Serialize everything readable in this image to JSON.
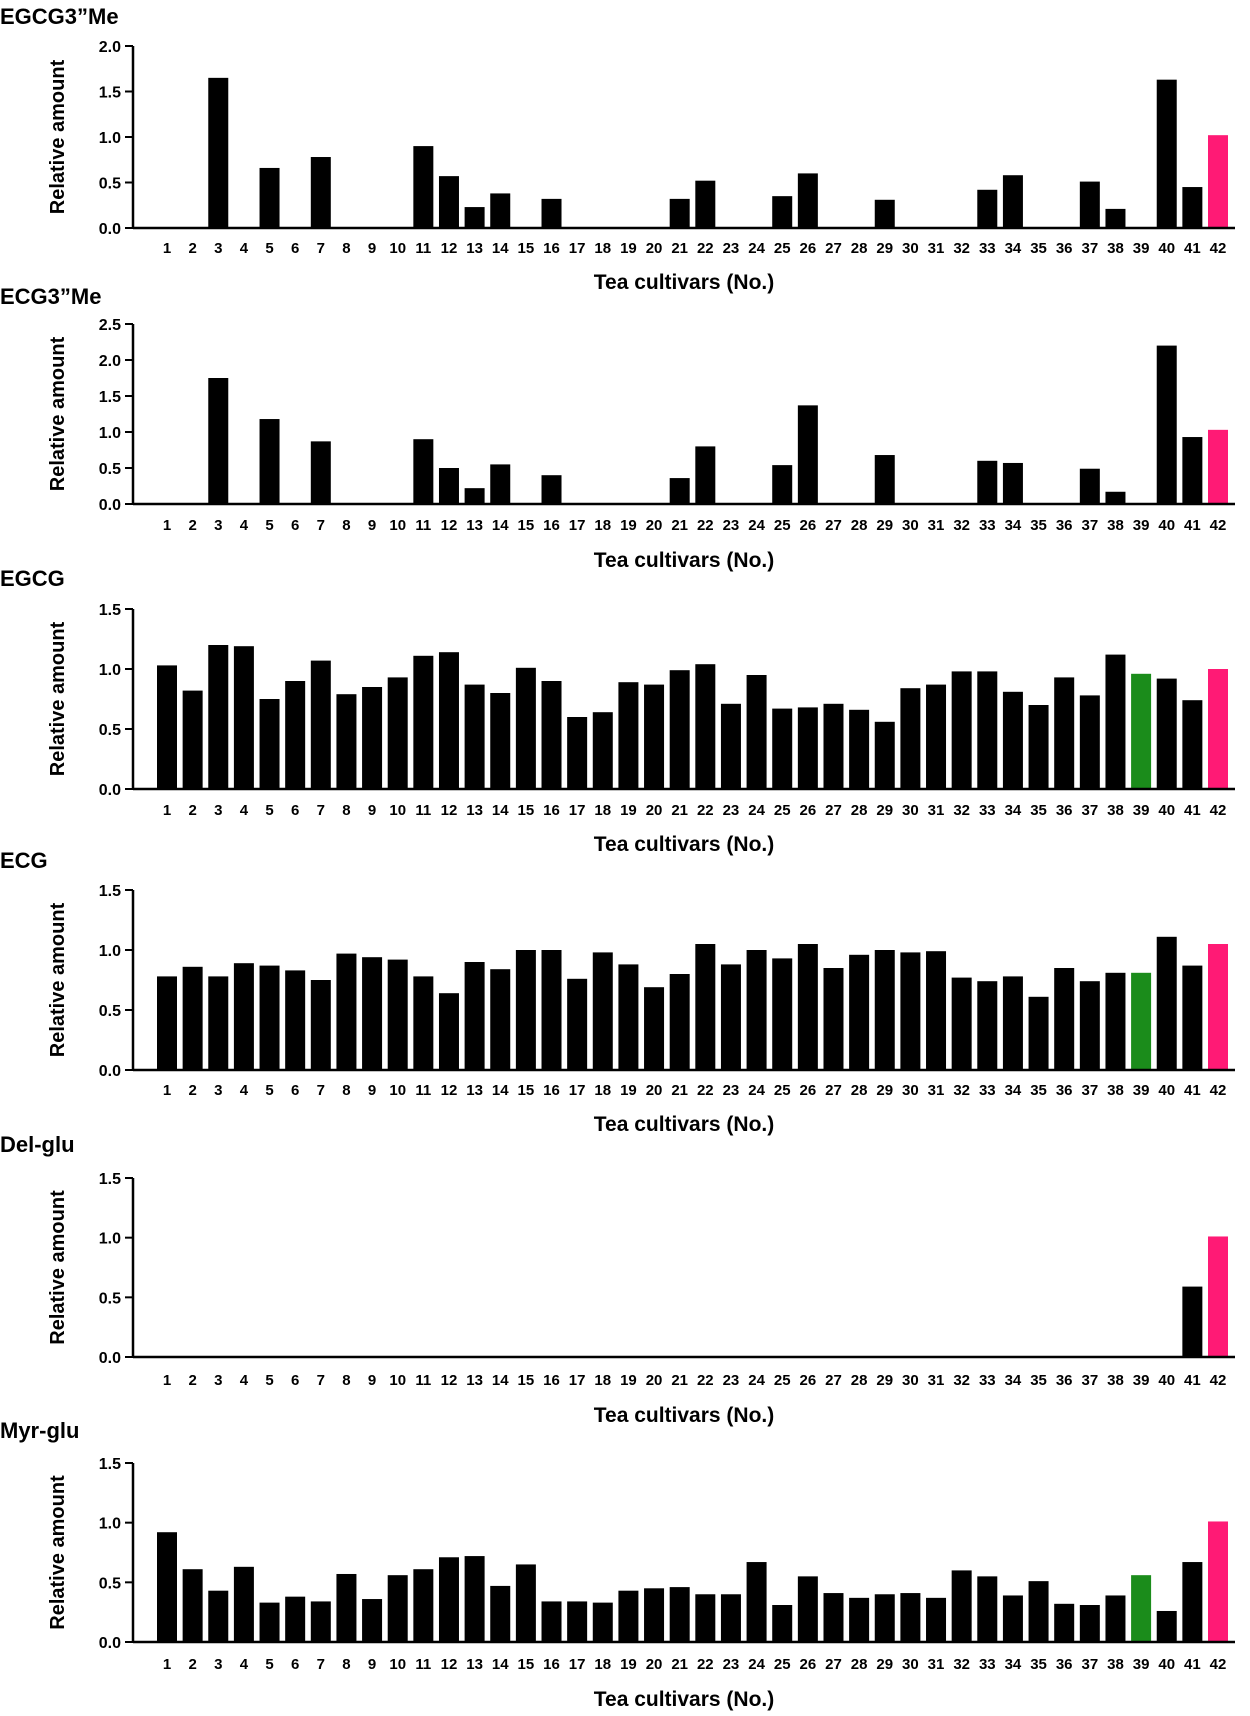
{
  "colors": {
    "bar": "#000000",
    "highlight_pink": "#ff1a75",
    "highlight_green": "#1b8c1b"
  },
  "chart_data": [
    {
      "type": "bar",
      "title": "EGCG3”Me",
      "xlabel": "Tea cultivars (No.)",
      "ylabel": "Relative amount",
      "ylim": [
        0,
        2.0
      ],
      "yticks": [
        "0.0",
        "0.5",
        "1.0",
        "1.5",
        "2.0"
      ],
      "categories": [
        "1",
        "2",
        "3",
        "4",
        "5",
        "6",
        "7",
        "8",
        "9",
        "10",
        "11",
        "12",
        "13",
        "14",
        "15",
        "16",
        "17",
        "18",
        "19",
        "20",
        "21",
        "22",
        "23",
        "24",
        "25",
        "26",
        "27",
        "28",
        "29",
        "30",
        "31",
        "32",
        "33",
        "34",
        "35",
        "36",
        "37",
        "38",
        "39",
        "40",
        "41",
        "42"
      ],
      "values": [
        0,
        0,
        1.65,
        0,
        0.66,
        0,
        0.78,
        0,
        0,
        0,
        0.9,
        0.57,
        0.23,
        0.38,
        0,
        0.32,
        0,
        0,
        0,
        0,
        0.32,
        0.52,
        0,
        0,
        0.35,
        0.6,
        0,
        0,
        0.31,
        0,
        0,
        0,
        0.42,
        0.58,
        0,
        0,
        0.51,
        0.21,
        0,
        1.63,
        0.45,
        1.02
      ],
      "highlight": {
        "42": "pink"
      }
    },
    {
      "type": "bar",
      "title": "ECG3”Me",
      "xlabel": "Tea cultivars (No.)",
      "ylabel": "Relative amount",
      "ylim": [
        0,
        2.5
      ],
      "yticks": [
        "0.0",
        "0.5",
        "1.0",
        "1.5",
        "2.0",
        "2.5"
      ],
      "categories": [
        "1",
        "2",
        "3",
        "4",
        "5",
        "6",
        "7",
        "8",
        "9",
        "10",
        "11",
        "12",
        "13",
        "14",
        "15",
        "16",
        "17",
        "18",
        "19",
        "20",
        "21",
        "22",
        "23",
        "24",
        "25",
        "26",
        "27",
        "28",
        "29",
        "30",
        "31",
        "32",
        "33",
        "34",
        "35",
        "36",
        "37",
        "38",
        "39",
        "40",
        "41",
        "42"
      ],
      "values": [
        0,
        0,
        1.75,
        0,
        1.18,
        0,
        0.87,
        0,
        0,
        0,
        0.9,
        0.5,
        0.22,
        0.55,
        0,
        0.4,
        0,
        0,
        0,
        0,
        0.36,
        0.8,
        0,
        0,
        0.54,
        1.37,
        0,
        0,
        0.68,
        0,
        0,
        0,
        0.6,
        0.57,
        0,
        0,
        0.49,
        0.17,
        0,
        2.2,
        0.93,
        1.03
      ],
      "highlight": {
        "42": "pink"
      }
    },
    {
      "type": "bar",
      "title": "EGCG",
      "xlabel": "Tea cultivars (No.)",
      "ylabel": "Relative amount",
      "ylim": [
        0,
        1.5
      ],
      "yticks": [
        "0.0",
        "0.5",
        "1.0",
        "1.5"
      ],
      "categories": [
        "1",
        "2",
        "3",
        "4",
        "5",
        "6",
        "7",
        "8",
        "9",
        "10",
        "11",
        "12",
        "13",
        "14",
        "15",
        "16",
        "17",
        "18",
        "19",
        "20",
        "21",
        "22",
        "23",
        "24",
        "25",
        "26",
        "27",
        "28",
        "29",
        "30",
        "31",
        "32",
        "33",
        "34",
        "35",
        "36",
        "37",
        "38",
        "39",
        "40",
        "41",
        "42"
      ],
      "values": [
        1.03,
        0.82,
        1.2,
        1.19,
        0.75,
        0.9,
        1.07,
        0.79,
        0.85,
        0.93,
        1.11,
        1.14,
        0.87,
        0.8,
        1.01,
        0.9,
        0.6,
        0.64,
        0.89,
        0.87,
        0.99,
        1.04,
        0.71,
        0.95,
        0.67,
        0.68,
        0.71,
        0.66,
        0.56,
        0.84,
        0.87,
        0.98,
        0.98,
        0.81,
        0.7,
        0.93,
        0.78,
        1.12,
        0.96,
        0.92,
        0.74,
        1.0
      ],
      "highlight": {
        "39": "green",
        "42": "pink"
      }
    },
    {
      "type": "bar",
      "title": "ECG",
      "xlabel": "Tea cultivars (No.)",
      "ylabel": "Relative amount",
      "ylim": [
        0,
        1.5
      ],
      "yticks": [
        "0.0",
        "0.5",
        "1.0",
        "1.5"
      ],
      "categories": [
        "1",
        "2",
        "3",
        "4",
        "5",
        "6",
        "7",
        "8",
        "9",
        "10",
        "11",
        "12",
        "13",
        "14",
        "15",
        "16",
        "17",
        "18",
        "19",
        "20",
        "21",
        "22",
        "23",
        "24",
        "25",
        "26",
        "27",
        "28",
        "29",
        "30",
        "31",
        "32",
        "33",
        "34",
        "35",
        "36",
        "37",
        "38",
        "39",
        "40",
        "41",
        "42"
      ],
      "values": [
        0.78,
        0.86,
        0.78,
        0.89,
        0.87,
        0.83,
        0.75,
        0.97,
        0.94,
        0.92,
        0.78,
        0.64,
        0.9,
        0.84,
        1.0,
        1.0,
        0.76,
        0.98,
        0.88,
        0.69,
        0.8,
        1.05,
        0.88,
        1.0,
        0.93,
        1.05,
        0.85,
        0.96,
        1.0,
        0.98,
        0.99,
        0.77,
        0.74,
        0.78,
        0.61,
        0.85,
        0.74,
        0.81,
        0.81,
        1.11,
        0.87,
        1.05
      ],
      "highlight": {
        "39": "green",
        "42": "pink"
      }
    },
    {
      "type": "bar",
      "title": "Del-glu",
      "xlabel": "Tea cultivars (No.)",
      "ylabel": "Relative amount",
      "ylim": [
        0,
        1.5
      ],
      "yticks": [
        "0.0",
        "0.5",
        "1.0",
        "1.5"
      ],
      "categories": [
        "1",
        "2",
        "3",
        "4",
        "5",
        "6",
        "7",
        "8",
        "9",
        "10",
        "11",
        "12",
        "13",
        "14",
        "15",
        "16",
        "17",
        "18",
        "19",
        "20",
        "21",
        "22",
        "23",
        "24",
        "25",
        "26",
        "27",
        "28",
        "29",
        "30",
        "31",
        "32",
        "33",
        "34",
        "35",
        "36",
        "37",
        "38",
        "39",
        "40",
        "41",
        "42"
      ],
      "values": [
        0,
        0,
        0,
        0,
        0,
        0,
        0,
        0,
        0,
        0,
        0,
        0,
        0,
        0,
        0,
        0,
        0,
        0,
        0,
        0,
        0,
        0,
        0,
        0,
        0,
        0,
        0,
        0,
        0,
        0,
        0,
        0,
        0,
        0,
        0,
        0,
        0,
        0,
        0,
        0,
        0.59,
        1.01
      ],
      "highlight": {
        "42": "pink"
      }
    },
    {
      "type": "bar",
      "title": "Myr-glu",
      "xlabel": "Tea cultivars (No.)",
      "ylabel": "Relative amount",
      "ylim": [
        0,
        1.5
      ],
      "yticks": [
        "0.0",
        "0.5",
        "1.0",
        "1.5"
      ],
      "categories": [
        "1",
        "2",
        "3",
        "4",
        "5",
        "6",
        "7",
        "8",
        "9",
        "10",
        "11",
        "12",
        "13",
        "14",
        "15",
        "16",
        "17",
        "18",
        "19",
        "20",
        "21",
        "22",
        "23",
        "24",
        "25",
        "26",
        "27",
        "28",
        "29",
        "30",
        "31",
        "32",
        "33",
        "34",
        "35",
        "36",
        "37",
        "38",
        "39",
        "40",
        "41",
        "42"
      ],
      "values": [
        0.92,
        0.61,
        0.43,
        0.63,
        0.33,
        0.38,
        0.34,
        0.57,
        0.36,
        0.56,
        0.61,
        0.71,
        0.72,
        0.47,
        0.65,
        0.34,
        0.34,
        0.33,
        0.43,
        0.45,
        0.46,
        0.4,
        0.4,
        0.67,
        0.31,
        0.55,
        0.41,
        0.37,
        0.4,
        0.41,
        0.37,
        0.6,
        0.55,
        0.39,
        0.51,
        0.32,
        0.31,
        0.39,
        0.56,
        0.26,
        0.67,
        1.01
      ],
      "highlight": {
        "39": "green",
        "42": "pink"
      }
    }
  ]
}
